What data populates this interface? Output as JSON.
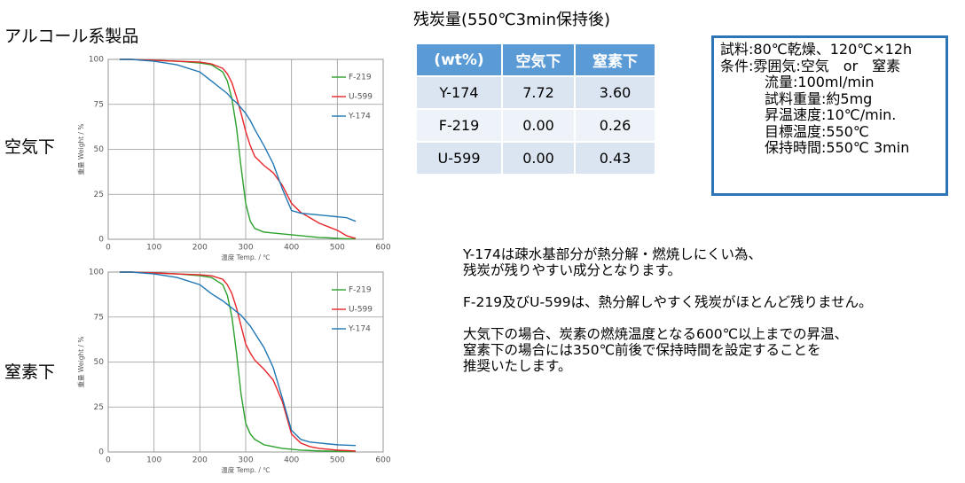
{
  "title": "アルコール系製品",
  "panels": [
    "空気下",
    "窒素下"
  ],
  "chart_data": [
    {
      "type": "line",
      "xlabel": "温度 Temp. / ℃",
      "ylabel": "重量 Weight / %",
      "xlim": [
        0,
        600
      ],
      "ylim": [
        0,
        100
      ],
      "xticks": [
        0,
        100,
        200,
        300,
        400,
        500,
        600
      ],
      "yticks": [
        0,
        25,
        50,
        75,
        100
      ],
      "grid": true,
      "legend": "upper right",
      "x": [
        25,
        50,
        100,
        150,
        200,
        225,
        250,
        260,
        270,
        280,
        290,
        300,
        310,
        320,
        340,
        360,
        380,
        400,
        420,
        440,
        460,
        480,
        500,
        520,
        540
      ],
      "series": [
        {
          "name": "F-219",
          "color": "#2ca02c",
          "values": [
            100,
            100,
            99.5,
            99,
            98,
            97,
            93,
            88,
            78,
            62,
            40,
            20,
            10,
            6,
            4,
            3.5,
            3,
            2.5,
            2,
            1.5,
            1,
            0.8,
            0.5,
            0.3,
            0.3
          ]
        },
        {
          "name": "U-599",
          "color": "#e8252a",
          "values": [
            100,
            100,
            99.5,
            99,
            98.5,
            97.5,
            95,
            92,
            87,
            79,
            70,
            60,
            52,
            46,
            41,
            37,
            30,
            20,
            15,
            12,
            9,
            7,
            5,
            2,
            0.5
          ]
        },
        {
          "name": "Y-174",
          "color": "#1f77b4",
          "values": [
            100,
            100,
            99,
            97,
            93,
            88,
            83,
            81,
            78,
            76,
            73,
            70,
            66,
            61,
            52,
            42,
            28,
            16,
            14.5,
            14,
            13.5,
            13,
            12.5,
            12,
            10
          ]
        }
      ]
    },
    {
      "type": "line",
      "xlabel": "温度 Temp. / ℃",
      "ylabel": "重量 Weight / %",
      "xlim": [
        0,
        600
      ],
      "ylim": [
        0,
        100
      ],
      "xticks": [
        0,
        100,
        200,
        300,
        400,
        500,
        600
      ],
      "yticks": [
        0,
        25,
        50,
        75,
        100
      ],
      "grid": true,
      "legend": "upper right",
      "x": [
        25,
        50,
        100,
        150,
        200,
        225,
        250,
        260,
        270,
        280,
        290,
        300,
        310,
        320,
        340,
        360,
        380,
        400,
        420,
        440,
        460,
        480,
        500,
        520,
        540
      ],
      "series": [
        {
          "name": "F-219",
          "color": "#2ca02c",
          "values": [
            100,
            100,
            99.5,
            99,
            98,
            97,
            93,
            87,
            75,
            55,
            32,
            16,
            10,
            7,
            4,
            3,
            2,
            1.5,
            1,
            0.8,
            0.6,
            0.5,
            0.4,
            0.3,
            0.3
          ]
        },
        {
          "name": "U-599",
          "color": "#e8252a",
          "values": [
            100,
            100,
            99.5,
            99,
            98.5,
            98,
            96,
            93,
            88,
            80,
            70,
            60,
            55,
            51,
            46,
            40,
            28,
            10,
            5,
            3,
            2,
            1.5,
            1,
            0.8,
            0.5
          ]
        },
        {
          "name": "Y-174",
          "color": "#1f77b4",
          "values": [
            100,
            100,
            99,
            97,
            93,
            88,
            84,
            82,
            80,
            78,
            76,
            73,
            70,
            66,
            58,
            47,
            30,
            12,
            7,
            5.5,
            5,
            4.5,
            4,
            3.8,
            3.6
          ]
        }
      ]
    }
  ],
  "table": {
    "title": "残炭量(550℃3min保持後)",
    "header": [
      "(wt%)",
      "空気下",
      "窒素下"
    ],
    "rows": [
      [
        "Y-174",
        "7.72",
        "3.60"
      ],
      [
        "F-219",
        "0.00",
        "0.26"
      ],
      [
        "U-599",
        "0.00",
        "0.43"
      ]
    ]
  },
  "conditions": [
    "試料:80℃乾燥、120℃×12h",
    "条件:雰囲気:空気　or　窒素",
    "流量:100ml/min",
    "試料重量:約5mg",
    "昇温速度:10℃/min.",
    "目標温度:550℃",
    "保持時間:550℃ 3min"
  ],
  "notes": [
    [
      "Y-174は疎水基部分が熱分解・燃焼しにくい為、",
      "残炭が残りやすい成分となります。"
    ],
    [
      "F-219及びU-599は、熱分解しやすく残炭がほとんど残りません。"
    ],
    [
      "大気下の場合、炭素の燃焼温度となる600℃以上までの昇温、",
      "窒素下の場合には350℃前後で保持時間を設定することを",
      "推奨いたします。"
    ]
  ]
}
